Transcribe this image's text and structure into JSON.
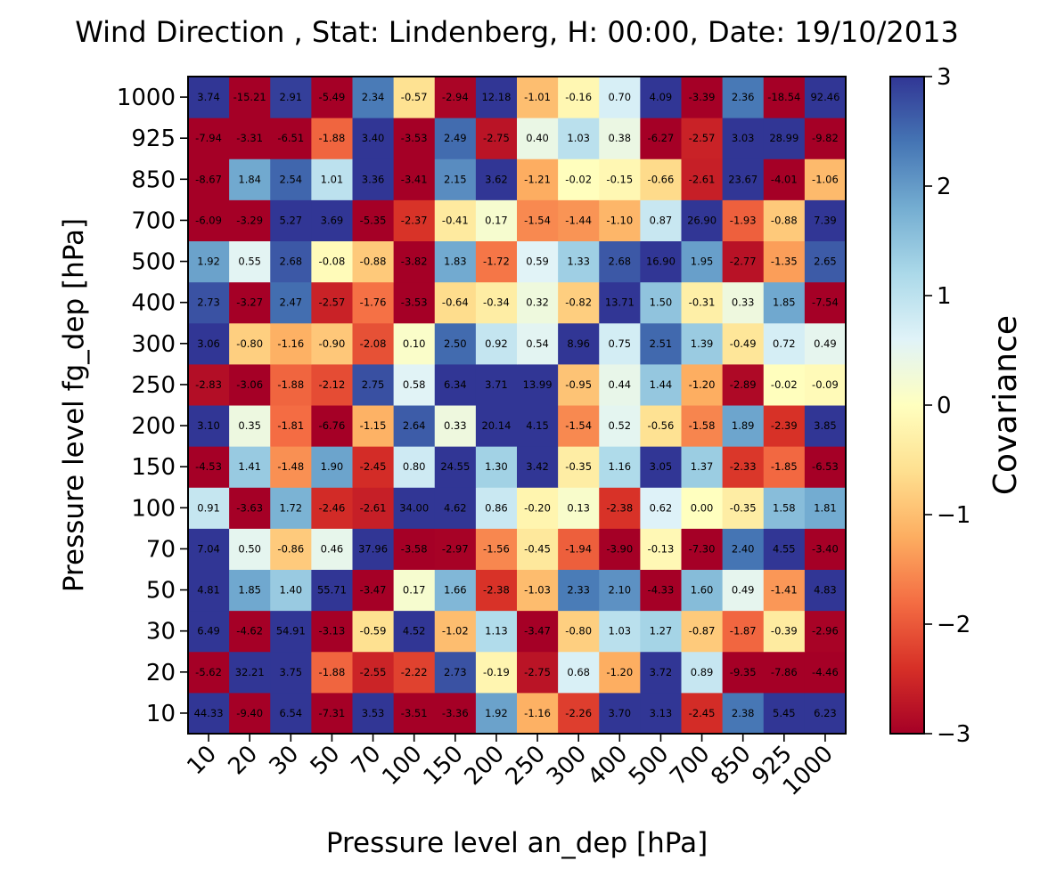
{
  "title": "Wind Direction , Stat: Lindenberg, H: 00:00, Date: 19/10/2013",
  "chart_data": {
    "type": "heatmap",
    "title": "Wind Direction , Stat: Lindenberg, H: 00:00, Date: 19/10/2013",
    "xlabel": "Pressure level an_dep [hPa]",
    "ylabel": "Pressure level fg_dep [hPa]",
    "x_categories": [
      "10",
      "20",
      "30",
      "50",
      "70",
      "100",
      "150",
      "200",
      "250",
      "300",
      "400",
      "500",
      "700",
      "850",
      "925",
      "1000"
    ],
    "y_categories": [
      "10",
      "20",
      "30",
      "50",
      "70",
      "100",
      "150",
      "200",
      "250",
      "300",
      "400",
      "500",
      "700",
      "850",
      "925",
      "1000"
    ],
    "colormap": "RdYlBu",
    "colorbar": {
      "label": "Covariance",
      "vmin": -3,
      "vmax": 3,
      "ticks": [
        "3",
        "2",
        "1",
        "0",
        "−1",
        "−2",
        "−3"
      ]
    },
    "values": [
      [
        44.33,
        -9.4,
        6.54,
        -7.31,
        3.53,
        -3.51,
        -3.36,
        1.92,
        -1.16,
        -2.26,
        3.7,
        3.13,
        -2.45,
        2.38,
        5.45,
        6.23
      ],
      [
        -5.62,
        32.21,
        3.75,
        -1.88,
        -2.55,
        -2.22,
        2.73,
        -0.19,
        -2.75,
        0.68,
        -1.2,
        3.72,
        0.89,
        -9.35,
        -7.86,
        -4.46
      ],
      [
        6.49,
        -4.62,
        54.91,
        -3.13,
        -0.59,
        4.52,
        -1.02,
        1.13,
        -3.47,
        -0.8,
        1.03,
        1.27,
        -0.87,
        -1.87,
        -0.39,
        -2.96
      ],
      [
        4.81,
        1.85,
        1.4,
        55.71,
        -3.47,
        0.17,
        1.66,
        -2.38,
        -1.03,
        2.33,
        2.1,
        -4.33,
        1.6,
        0.49,
        -1.41,
        4.83
      ],
      [
        7.04,
        0.5,
        -0.86,
        0.46,
        37.96,
        -3.58,
        -2.97,
        -1.56,
        -0.45,
        -1.94,
        -3.9,
        -0.13,
        -7.3,
        2.4,
        4.55,
        -3.4
      ],
      [
        0.91,
        -3.63,
        1.72,
        -2.46,
        -2.61,
        34.0,
        4.62,
        0.86,
        -0.2,
        0.13,
        -2.38,
        0.62,
        0.0,
        -0.35,
        1.58,
        1.81
      ],
      [
        -4.53,
        1.41,
        -1.48,
        1.9,
        -2.45,
        0.8,
        24.55,
        1.3,
        3.42,
        -0.35,
        1.16,
        3.05,
        1.37,
        -2.33,
        -1.85,
        -6.53
      ],
      [
        3.1,
        0.35,
        -1.81,
        -6.76,
        -1.15,
        2.64,
        0.33,
        20.14,
        4.15,
        -1.54,
        0.52,
        -0.56,
        -1.58,
        1.89,
        -2.39,
        3.85
      ],
      [
        -2.83,
        -3.06,
        -1.88,
        -2.12,
        2.75,
        0.58,
        6.34,
        3.71,
        13.99,
        -0.95,
        0.44,
        1.44,
        -1.2,
        -2.89,
        -0.02,
        -0.09
      ],
      [
        3.06,
        -0.8,
        -1.16,
        -0.9,
        -2.08,
        0.1,
        2.5,
        0.92,
        0.54,
        8.96,
        0.75,
        2.51,
        1.39,
        -0.49,
        0.72,
        0.49
      ],
      [
        2.73,
        -3.27,
        2.47,
        -2.57,
        -1.76,
        -3.53,
        -0.64,
        -0.34,
        0.32,
        -0.82,
        13.71,
        1.5,
        -0.31,
        0.33,
        1.85,
        -7.54
      ],
      [
        1.92,
        0.55,
        2.68,
        -0.08,
        -0.88,
        -3.82,
        1.83,
        -1.72,
        0.59,
        1.33,
        2.68,
        16.9,
        1.95,
        -2.77,
        -1.35,
        2.65
      ],
      [
        -6.09,
        -3.29,
        5.27,
        3.69,
        -5.35,
        -2.37,
        -0.41,
        0.17,
        -1.54,
        -1.44,
        -1.1,
        0.87,
        26.9,
        -1.93,
        -0.88,
        7.39
      ],
      [
        -8.67,
        1.84,
        2.54,
        1.01,
        3.36,
        -3.41,
        2.15,
        3.62,
        -1.21,
        -0.02,
        -0.15,
        -0.66,
        -2.61,
        23.67,
        -4.01,
        -1.06
      ],
      [
        -7.94,
        -3.31,
        -6.51,
        -1.88,
        3.4,
        -3.53,
        2.49,
        -2.75,
        0.4,
        1.03,
        0.38,
        -6.27,
        -2.57,
        3.03,
        28.99,
        -9.82
      ],
      [
        3.74,
        -15.21,
        2.91,
        -5.49,
        2.34,
        -0.57,
        -2.94,
        12.18,
        -1.01,
        -0.16,
        0.7,
        4.09,
        -3.39,
        2.36,
        -18.54,
        92.46
      ]
    ]
  }
}
